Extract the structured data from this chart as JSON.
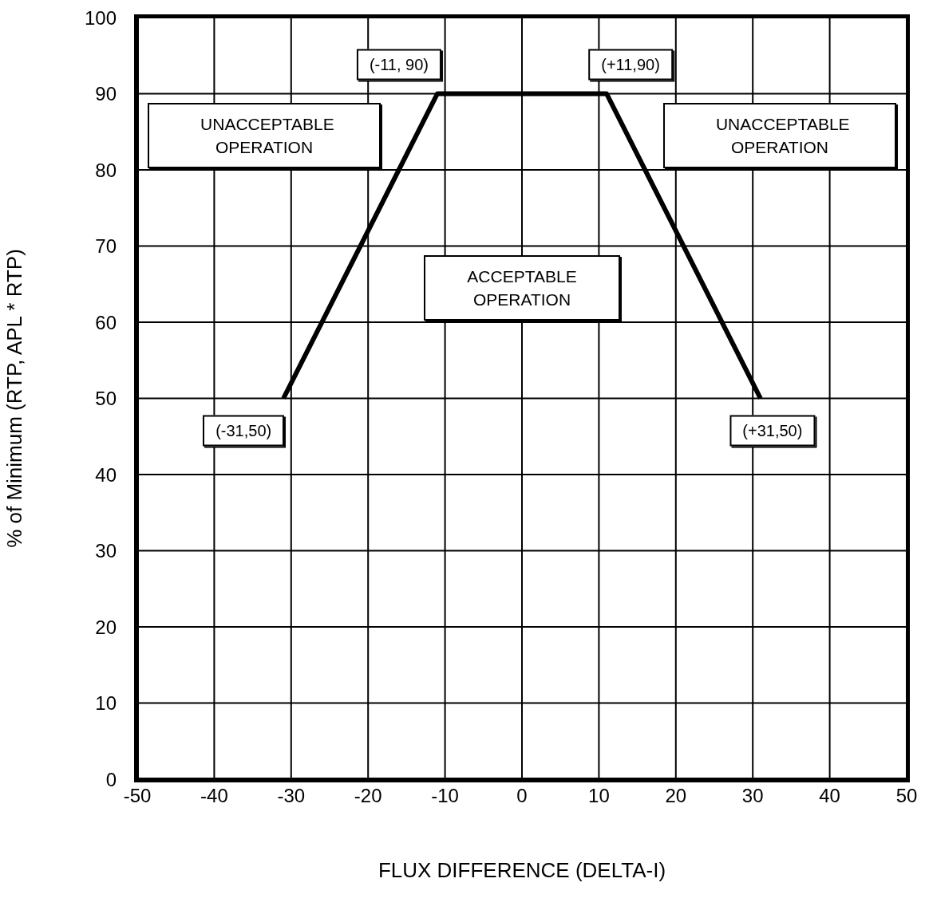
{
  "chart_data": {
    "type": "line",
    "xlabel": "FLUX DIFFERENCE (DELTA-I)",
    "ylabel": "% of Minimum (RTP, APL * RTP)",
    "x": [
      -31,
      -11,
      11,
      31
    ],
    "series": [
      {
        "color": "#000000",
        "values": [
          50,
          90,
          90,
          50
        ]
      }
    ],
    "xlim": [
      -50,
      50
    ],
    "xticks": [
      -50,
      -40,
      -30,
      -20,
      -10,
      0,
      10,
      20,
      30,
      40,
      50
    ],
    "ylim": [
      0,
      100
    ],
    "yticks": [
      0,
      10,
      20,
      30,
      40,
      50,
      60,
      70,
      80,
      90,
      100
    ],
    "grid": true,
    "marker": "none",
    "line_style": "solid",
    "annotations": [
      {
        "text": "(-11, 90)",
        "x": -11,
        "y": 90
      },
      {
        "text": "(+11,90)",
        "x": 11,
        "y": 90
      },
      {
        "text": "(-31,50)",
        "x": -31,
        "y": 50
      },
      {
        "text": "(+31,50)",
        "x": 31,
        "y": 50
      },
      "UNACCEPTABLE OPERATION",
      "UNACCEPTABLE OPERATION",
      "ACCEPTABLE OPERATION"
    ]
  }
}
